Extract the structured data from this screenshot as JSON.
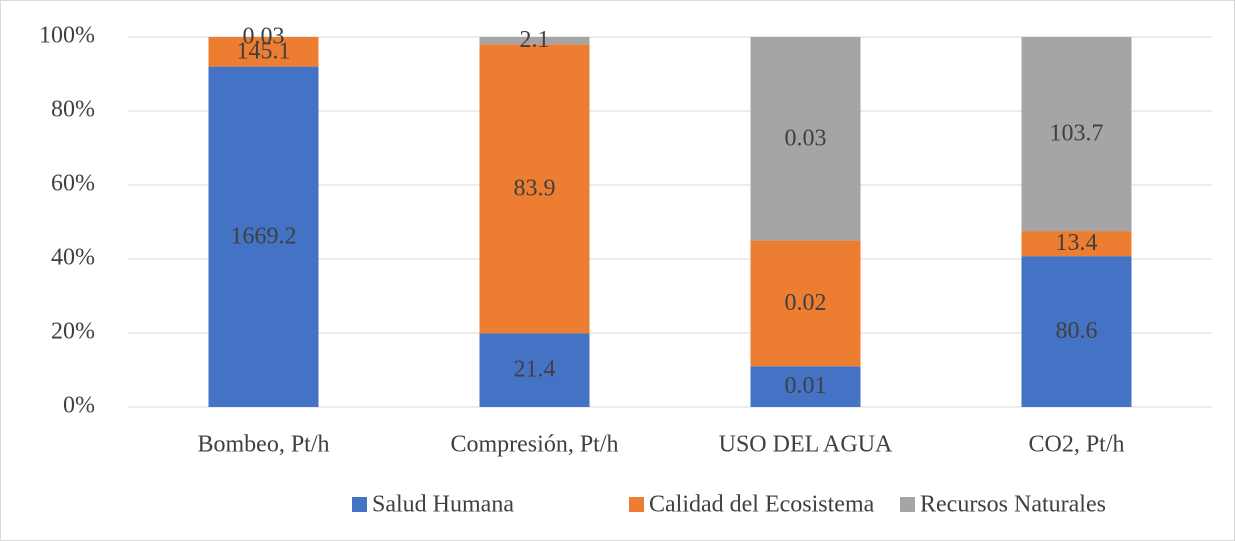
{
  "chart_data": {
    "type": "bar",
    "stacked": "percent",
    "categories": [
      "Bombeo, Pt/h",
      "Compresión, Pt/h",
      "USO DEL AGUA",
      "CO2, Pt/h"
    ],
    "series": [
      {
        "name": "Salud Humana",
        "color": "#4472c4",
        "values": [
          1669.2,
          21.4,
          0.0069,
          80.6
        ],
        "value_labels": [
          "1669.2",
          "21.4",
          "0.01",
          "80.6"
        ]
      },
      {
        "name": "Calidad del Ecosistema",
        "color": "#ed7d31",
        "values": [
          145.1,
          83.9,
          0.0213,
          13.4
        ],
        "value_labels": [
          "145.1",
          "83.9",
          "0.02",
          "13.4"
        ]
      },
      {
        "name": "Recursos Naturales",
        "color": "#a5a5a5",
        "values": [
          0.03,
          2.1,
          0.0345,
          103.7
        ],
        "value_labels": [
          "0.03",
          "2.1",
          "0.03",
          "103.7"
        ]
      }
    ],
    "ylim": [
      0,
      100
    ],
    "yticks": [
      {
        "value": 0,
        "label": "0%"
      },
      {
        "value": 20,
        "label": "20%"
      },
      {
        "value": 40,
        "label": "40%"
      },
      {
        "value": 60,
        "label": "60%"
      },
      {
        "value": 80,
        "label": "80%"
      },
      {
        "value": 100,
        "label": "100%"
      }
    ],
    "grid": true,
    "legend": "bottom"
  }
}
